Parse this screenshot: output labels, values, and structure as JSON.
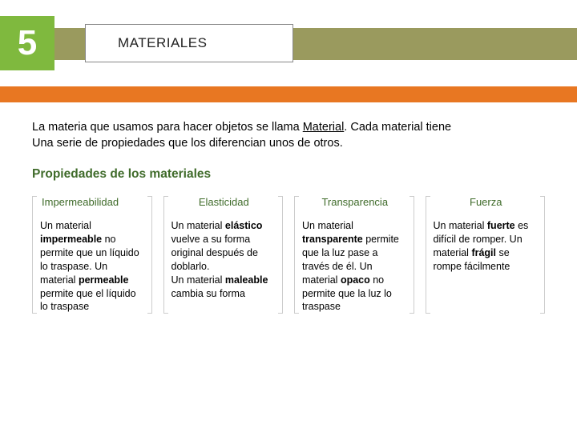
{
  "header": {
    "number": "5",
    "title": "MATERIALES"
  },
  "colors": {
    "number_bg": "#7fb93e",
    "olive_bar": "#9a9a5e",
    "orange_bar": "#e87722",
    "section_title": "#3f6b2a",
    "col_title": "#3f6b2a"
  },
  "intro": {
    "line1_pre": "La materia que usamos para hacer objetos se llama ",
    "line1_underline": "Material",
    "line1_post": ". Cada material tiene",
    "line2": "Una serie de propiedades que los diferencian unos de otros."
  },
  "section_title": "Propiedades de los materiales",
  "columns": [
    {
      "title": "Impermeabilidad",
      "body_html": "Un material <b>impermeable</b> no permite que un líquido lo traspase. Un material <b>permeable</b> permite que el líquido lo traspase"
    },
    {
      "title": "Elasticidad",
      "body_html": "Un material <b>elástico</b> vuelve a su forma original después de doblarlo.<br>Un material <b>maleable</b> cambia su forma"
    },
    {
      "title": "Transparencia",
      "body_html": "Un material <b>transparente</b> permite que la luz pase a través de él. Un material <b>opaco</b> no permite que la luz lo traspase"
    },
    {
      "title": "Fuerza",
      "body_html": "Un material <b>fuerte</b> es difícil de romper. Un material <b>frágil</b> se rompe fácilmente"
    }
  ]
}
